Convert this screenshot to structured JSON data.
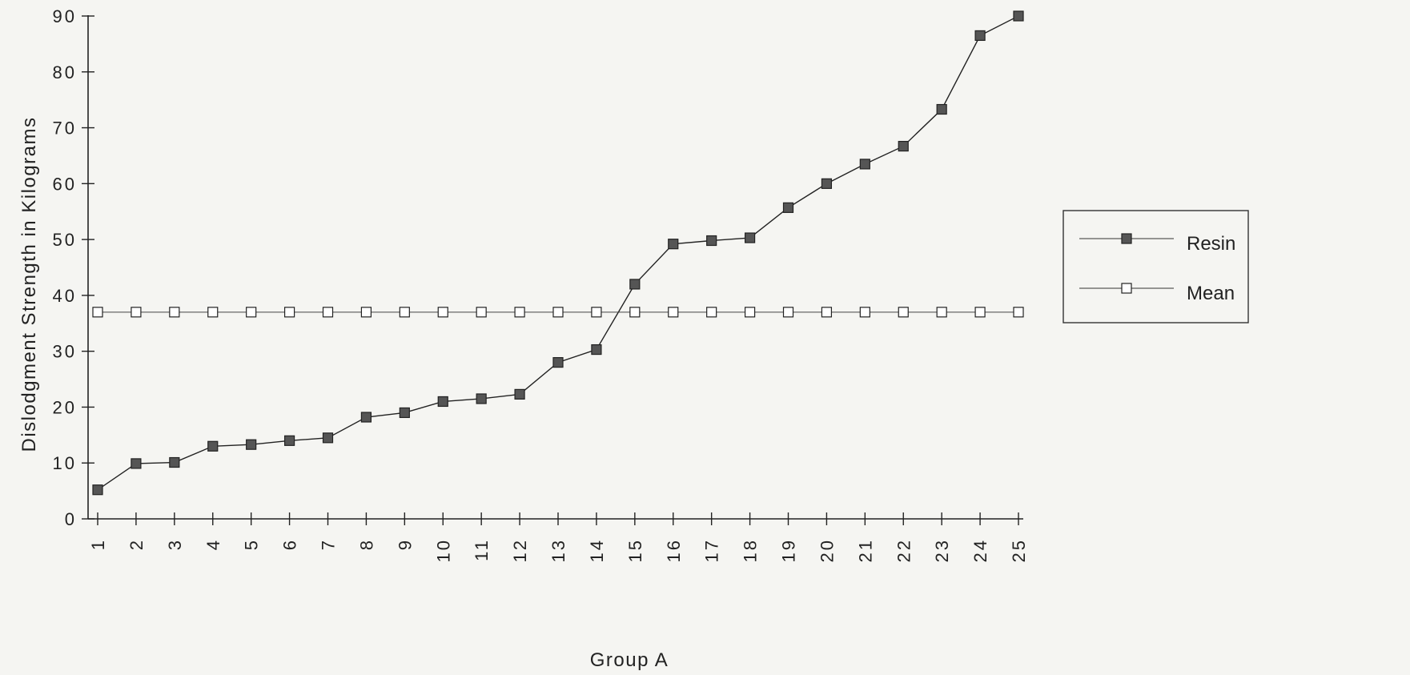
{
  "chart_data": {
    "type": "line",
    "title": "",
    "xlabel": "Group A",
    "ylabel": "Dislodgment Strength in Kilograms",
    "x": [
      1,
      2,
      3,
      4,
      5,
      6,
      7,
      8,
      9,
      10,
      11,
      12,
      13,
      14,
      15,
      16,
      17,
      18,
      19,
      20,
      21,
      22,
      23,
      24,
      25
    ],
    "xticks": [
      "1",
      "2",
      "3",
      "4",
      "5",
      "6",
      "7",
      "8",
      "9",
      "10",
      "11",
      "12",
      "13",
      "14",
      "15",
      "16",
      "17",
      "18",
      "19",
      "20",
      "21",
      "22",
      "23",
      "24",
      "25"
    ],
    "ylim": [
      0,
      90
    ],
    "yticks": [
      "0",
      "10",
      "20",
      "30",
      "40",
      "50",
      "60",
      "70",
      "80",
      "90"
    ],
    "grid": false,
    "legend_position": "right",
    "series": [
      {
        "name": "Resin",
        "marker": "filled-square",
        "color": "#555555",
        "values": [
          5.2,
          9.9,
          10.1,
          13.0,
          13.3,
          14.0,
          14.5,
          18.2,
          19.0,
          21.0,
          21.5,
          22.3,
          28.0,
          30.3,
          42.0,
          49.2,
          49.8,
          50.3,
          55.7,
          60.0,
          63.5,
          66.7,
          73.3,
          86.5,
          90.0
        ]
      },
      {
        "name": "Mean",
        "marker": "open-square",
        "color": "#ffffff",
        "values": [
          37.0,
          37.0,
          37.0,
          37.0,
          37.0,
          37.0,
          37.0,
          37.0,
          37.0,
          37.0,
          37.0,
          37.0,
          37.0,
          37.0,
          37.0,
          37.0,
          37.0,
          37.0,
          37.0,
          37.0,
          37.0,
          37.0,
          37.0,
          37.0,
          37.0
        ]
      }
    ]
  }
}
